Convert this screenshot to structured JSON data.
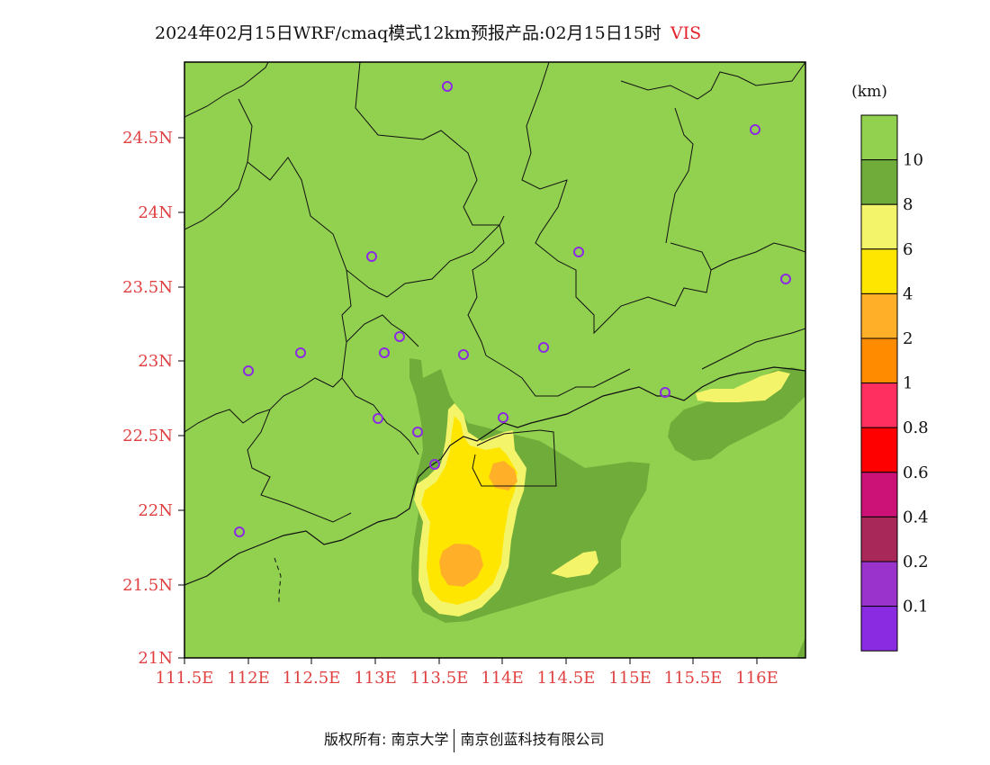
{
  "title": {
    "main": "2024年02月15日WRF/cmaq模式12km预报产品:02月15日15时",
    "variable": "VIS"
  },
  "axes": {
    "lat_ticks": [
      "24.5N",
      "24N",
      "23.5N",
      "23N",
      "22.5N",
      "22N",
      "21.5N",
      "21N"
    ],
    "lon_ticks": [
      "111.5E",
      "112E",
      "112.5E",
      "113E",
      "113.5E",
      "114E",
      "114.5E",
      "115E",
      "115.5E",
      "116E"
    ]
  },
  "legend": {
    "unit": "(km)",
    "bins": [
      {
        "label": "10",
        "color": "#92d050"
      },
      {
        "label": "8",
        "color": "#6fac3a"
      },
      {
        "label": "6",
        "color": "#f4f46a"
      },
      {
        "label": "4",
        "color": "#ffe600"
      },
      {
        "label": "2",
        "color": "#ffb028"
      },
      {
        "label": "1",
        "color": "#ff8c00"
      },
      {
        "label": "0.8",
        "color": "#ff3060"
      },
      {
        "label": "0.6",
        "color": "#ff0000"
      },
      {
        "label": "0.4",
        "color": "#cc1177"
      },
      {
        "label": "0.2",
        "color": "#a8285a"
      },
      {
        "label": "0.1",
        "color": "#9933cc"
      },
      {
        "label": "",
        "color": "#8a2be2"
      }
    ]
  },
  "footer": {
    "copyright": "版权所有: 南京大学",
    "company": "南京创蓝科技有限公司"
  }
}
